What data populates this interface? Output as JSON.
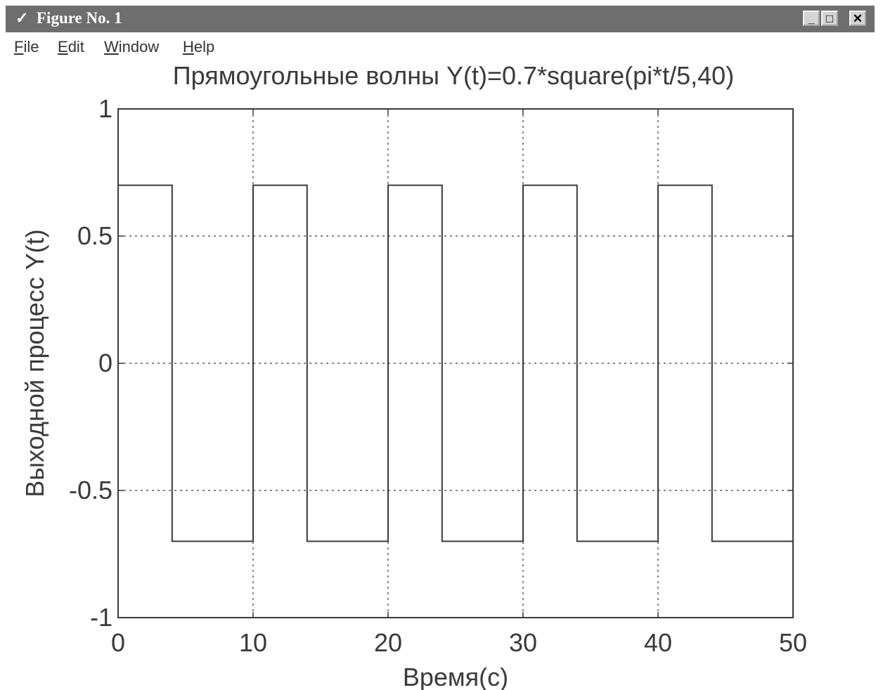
{
  "window": {
    "title": "Figure No. 1"
  },
  "menu": {
    "items": [
      {
        "first": "F",
        "rest": "ile"
      },
      {
        "first": "E",
        "rest": "dit"
      },
      {
        "first": "W",
        "rest": "indow"
      },
      {
        "first": "H",
        "rest": "elp"
      }
    ]
  },
  "colors": {
    "titlebar": "#6e6e6e",
    "line": "#3a3a3a",
    "grid": "#3a3a3a"
  },
  "icons": {
    "app": "figure-icon",
    "minimize": "minimize-icon",
    "maximize": "maximize-icon",
    "close": "close-icon"
  },
  "chart_data": {
    "type": "line",
    "title": "Прямоугольные волны Y(t)=0.7*square(pi*t/5,40)",
    "xlabel": "Время(с)",
    "ylabel": "Выходной процесс Y(t)",
    "xlim": [
      0,
      50
    ],
    "ylim": [
      -1,
      1
    ],
    "xticks": [
      "0",
      "10",
      "20",
      "30",
      "40",
      "50"
    ],
    "yticks": [
      "-1",
      "-0.5",
      "0",
      "0.5",
      "1"
    ],
    "grid": true,
    "series": [
      {
        "x": [
          0,
          4,
          4,
          10,
          10,
          14,
          14,
          20,
          20,
          24,
          24,
          30,
          30,
          34,
          34,
          40,
          40,
          44,
          44,
          50
        ],
        "y": [
          0.7,
          0.7,
          -0.7,
          -0.7,
          0.7,
          0.7,
          -0.7,
          -0.7,
          0.7,
          0.7,
          -0.7,
          -0.7,
          0.7,
          0.7,
          -0.7,
          -0.7,
          0.7,
          0.7,
          -0.7,
          -0.7
        ]
      }
    ]
  }
}
